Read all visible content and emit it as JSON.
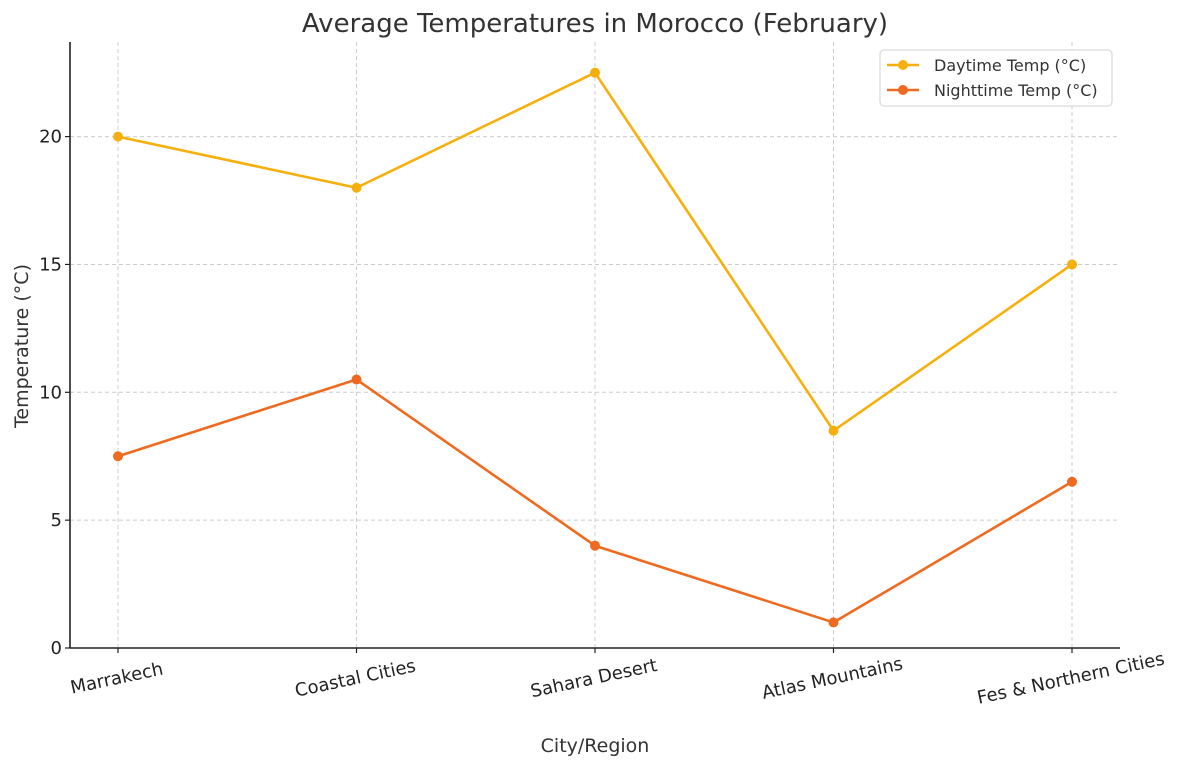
{
  "chart_data": {
    "type": "line",
    "title": "Average Temperatures in Morocco (February)",
    "xlabel": "City/Region",
    "ylabel": "Temperature (°C)",
    "categories": [
      "Marrakech",
      "Coastal Cities",
      "Sahara Desert",
      "Atlas Mountains",
      "Fes & Northern Cities"
    ],
    "ylim": [
      0,
      23.7
    ],
    "yticks": [
      0,
      5,
      10,
      15,
      20
    ],
    "grid": true,
    "legend_position": "top-right",
    "series": [
      {
        "name": "Daytime Temp (°C)",
        "color": "#F5B00F",
        "marker": "circle",
        "values": [
          20,
          18,
          22.5,
          8.5,
          15
        ]
      },
      {
        "name": "Nighttime Temp (°C)",
        "color": "#EE6A20",
        "marker": "circle",
        "values": [
          7.5,
          10.5,
          4,
          1,
          6.5
        ]
      }
    ]
  }
}
